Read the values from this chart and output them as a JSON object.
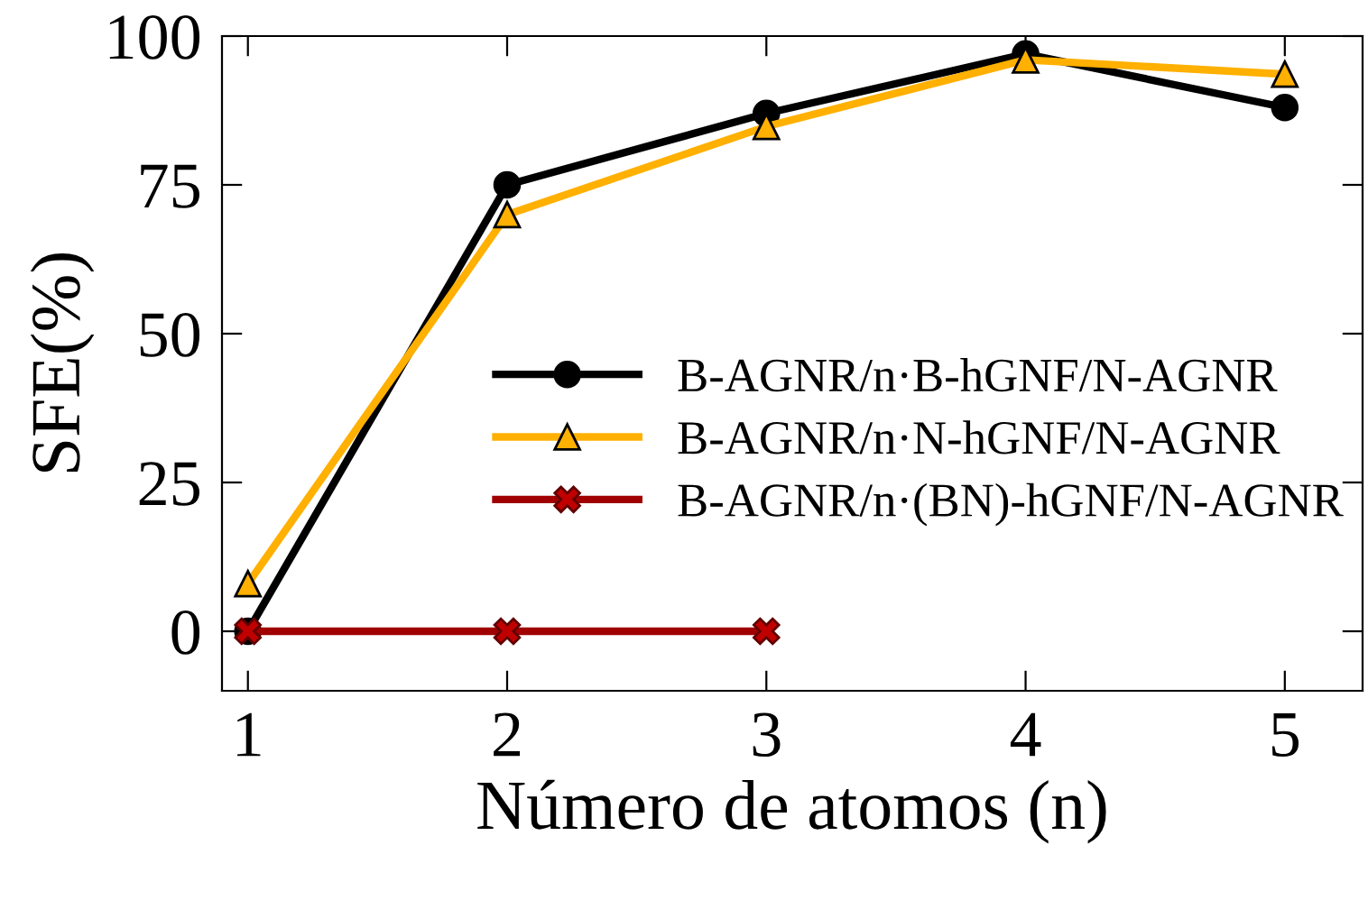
{
  "chart_data": {
    "type": "line",
    "xlabel": "Número de atomos (n)",
    "ylabel": "SFE(%)",
    "xlim": [
      0.9,
      5.3
    ],
    "ylim": [
      -10,
      100
    ],
    "xticks": [
      1,
      2,
      3,
      4,
      5
    ],
    "yticks": [
      0,
      25,
      50,
      75,
      100
    ],
    "grid": false,
    "legend": "right",
    "line_style": "solid",
    "series": [
      {
        "name": "B-AGNR/n·B-hGNF/N-AGNR",
        "color": "#000000",
        "marker": "circle",
        "x": [
          1,
          2,
          3,
          4,
          5
        ],
        "values": [
          0,
          75,
          87,
          97,
          88
        ]
      },
      {
        "name": "B-AGNR/n·N-hGNF/N-AGNR",
        "color": "#ffb000",
        "marker": "triangle",
        "x": [
          1,
          2,
          3,
          4,
          5
        ],
        "values": [
          8,
          70,
          84.8,
          96,
          93.6
        ]
      },
      {
        "name": "B-AGNR/n·(BN)-hGNF/N-AGNR",
        "color": "#a00000",
        "marker": "cross",
        "x": [
          1,
          2,
          3
        ],
        "values": [
          0,
          0,
          0
        ]
      }
    ]
  }
}
